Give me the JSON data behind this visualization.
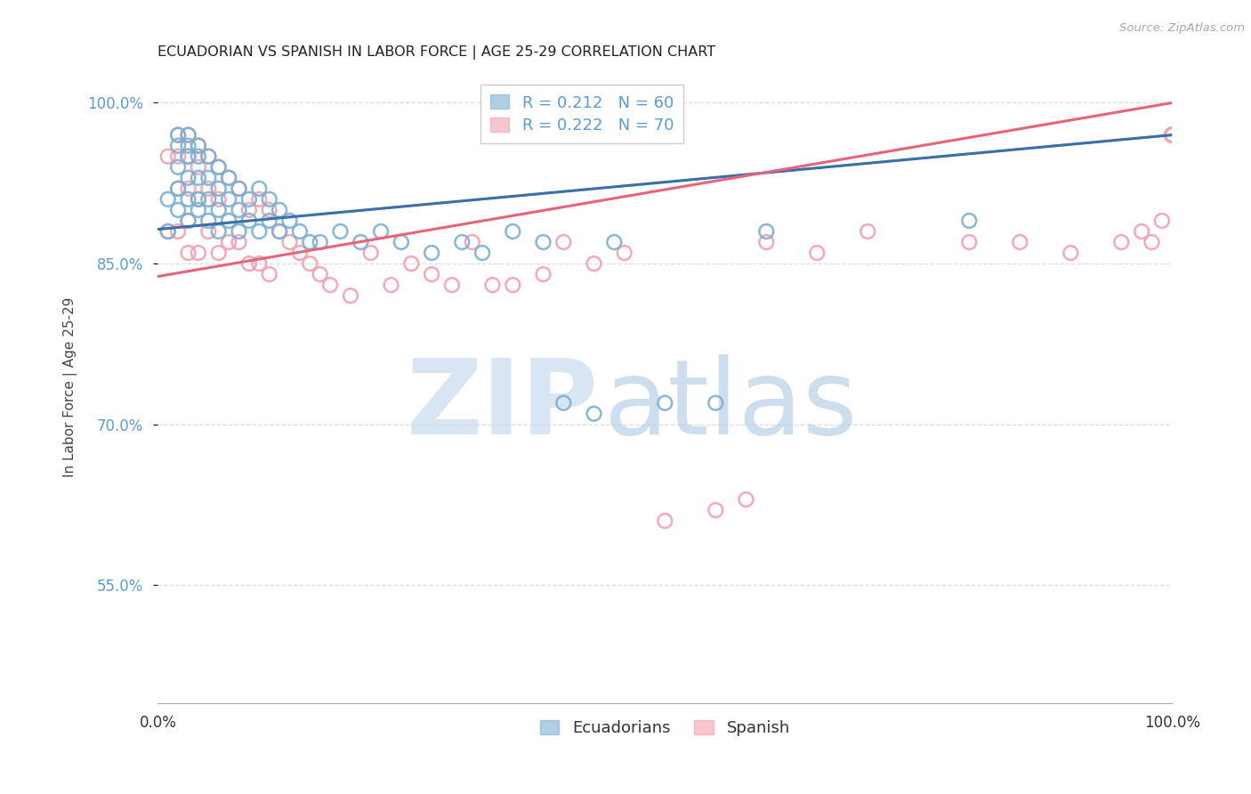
{
  "title": "ECUADORIAN VS SPANISH IN LABOR FORCE | AGE 25-29 CORRELATION CHART",
  "source": "Source: ZipAtlas.com",
  "ylabel": "In Labor Force | Age 25-29",
  "xlim": [
    0.0,
    1.0
  ],
  "ylim": [
    0.44,
    1.03
  ],
  "yticks": [
    0.55,
    0.7,
    0.85,
    1.0
  ],
  "ytick_labels": [
    "55.0%",
    "70.0%",
    "85.0%",
    "100.0%"
  ],
  "xtick_labels": [
    "0.0%",
    "100.0%"
  ],
  "ecu_color": "#7bafd4",
  "spa_color": "#f4a0b0",
  "ecu_line_color": "#3b6fa8",
  "spa_line_color": "#e8637a",
  "ecu_R": 0.212,
  "ecu_N": 60,
  "spa_R": 0.222,
  "spa_N": 70,
  "ecu_intercept": 0.882,
  "ecu_slope": 0.088,
  "spa_intercept": 0.838,
  "spa_slope": 0.162,
  "ecu_x": [
    0.01,
    0.01,
    0.02,
    0.02,
    0.02,
    0.02,
    0.02,
    0.03,
    0.03,
    0.03,
    0.03,
    0.03,
    0.03,
    0.04,
    0.04,
    0.04,
    0.04,
    0.04,
    0.05,
    0.05,
    0.05,
    0.05,
    0.06,
    0.06,
    0.06,
    0.06,
    0.07,
    0.07,
    0.07,
    0.08,
    0.08,
    0.08,
    0.09,
    0.09,
    0.1,
    0.1,
    0.11,
    0.11,
    0.12,
    0.12,
    0.13,
    0.14,
    0.15,
    0.16,
    0.18,
    0.2,
    0.22,
    0.24,
    0.27,
    0.3,
    0.32,
    0.35,
    0.38,
    0.4,
    0.43,
    0.45,
    0.5,
    0.55,
    0.6,
    0.8
  ],
  "ecu_y": [
    0.91,
    0.88,
    0.97,
    0.96,
    0.94,
    0.92,
    0.9,
    0.97,
    0.96,
    0.95,
    0.93,
    0.91,
    0.89,
    0.96,
    0.95,
    0.93,
    0.91,
    0.9,
    0.95,
    0.93,
    0.91,
    0.89,
    0.94,
    0.92,
    0.9,
    0.88,
    0.93,
    0.91,
    0.89,
    0.92,
    0.9,
    0.88,
    0.91,
    0.89,
    0.92,
    0.88,
    0.91,
    0.89,
    0.9,
    0.88,
    0.89,
    0.88,
    0.87,
    0.87,
    0.88,
    0.87,
    0.88,
    0.87,
    0.86,
    0.87,
    0.86,
    0.88,
    0.87,
    0.72,
    0.71,
    0.87,
    0.72,
    0.72,
    0.88,
    0.89
  ],
  "spa_x": [
    0.01,
    0.01,
    0.02,
    0.02,
    0.02,
    0.02,
    0.03,
    0.03,
    0.03,
    0.03,
    0.03,
    0.04,
    0.04,
    0.04,
    0.04,
    0.05,
    0.05,
    0.05,
    0.06,
    0.06,
    0.06,
    0.07,
    0.07,
    0.08,
    0.08,
    0.09,
    0.09,
    0.1,
    0.1,
    0.11,
    0.11,
    0.12,
    0.13,
    0.14,
    0.15,
    0.16,
    0.17,
    0.19,
    0.21,
    0.23,
    0.25,
    0.27,
    0.29,
    0.31,
    0.33,
    0.35,
    0.38,
    0.4,
    0.43,
    0.46,
    0.5,
    0.55,
    0.58,
    0.6,
    0.65,
    0.7,
    0.8,
    0.85,
    0.9,
    0.95,
    0.97,
    0.98,
    0.99,
    1.0,
    1.0,
    1.0,
    1.0,
    1.0,
    1.0,
    1.0
  ],
  "spa_y": [
    0.95,
    0.88,
    0.97,
    0.95,
    0.92,
    0.88,
    0.97,
    0.95,
    0.92,
    0.89,
    0.86,
    0.96,
    0.94,
    0.91,
    0.86,
    0.95,
    0.92,
    0.88,
    0.94,
    0.91,
    0.86,
    0.93,
    0.87,
    0.92,
    0.87,
    0.9,
    0.85,
    0.91,
    0.85,
    0.9,
    0.84,
    0.88,
    0.87,
    0.86,
    0.85,
    0.84,
    0.83,
    0.82,
    0.86,
    0.83,
    0.85,
    0.84,
    0.83,
    0.87,
    0.83,
    0.83,
    0.84,
    0.87,
    0.85,
    0.86,
    0.61,
    0.62,
    0.63,
    0.87,
    0.86,
    0.88,
    0.87,
    0.87,
    0.86,
    0.87,
    0.88,
    0.87,
    0.89,
    0.97,
    0.97,
    0.97,
    0.97,
    0.97,
    0.97,
    0.97
  ],
  "watermark_zip_color": "#c8dcf0",
  "watermark_atlas_color": "#b8d0e8",
  "grid_color": "#dddddd",
  "title_fontsize": 11.5,
  "tick_fontsize": 12,
  "ylabel_fontsize": 11,
  "legend_fontsize": 13
}
